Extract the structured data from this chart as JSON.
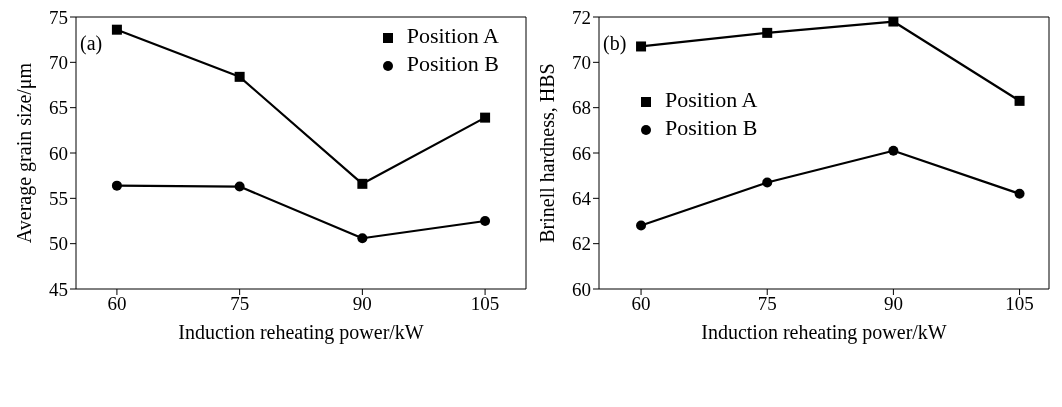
{
  "chart_data": [
    {
      "type": "line",
      "xlabel": "Induction reheating power/kW",
      "ylabel": "Average grain size/μm",
      "annotations": [
        "(a)"
      ],
      "x": [
        60,
        75,
        90,
        105
      ],
      "xlim": [
        55,
        110
      ],
      "xticks": [
        60,
        75,
        90,
        105
      ],
      "ylim": [
        45,
        75
      ],
      "yticks": [
        45,
        50,
        55,
        60,
        65,
        70,
        75
      ],
      "legend": "top right",
      "grid": false,
      "series": [
        {
          "name": "Position A",
          "color": "#000000",
          "marker": "square",
          "values": [
            73.6,
            68.4,
            56.6,
            63.9
          ]
        },
        {
          "name": "Position B",
          "color": "#000000",
          "marker": "circle",
          "values": [
            56.4,
            56.3,
            50.6,
            52.5
          ]
        }
      ]
    },
    {
      "type": "line",
      "xlabel": "Induction reheating power/kW",
      "ylabel": "Brinell hardness, HBS",
      "annotations": [
        "(b)"
      ],
      "x": [
        60,
        75,
        90,
        105
      ],
      "xlim": [
        55,
        108.5
      ],
      "xticks": [
        60,
        75,
        90,
        105
      ],
      "ylim": [
        60,
        72
      ],
      "yticks": [
        60,
        62,
        64,
        66,
        68,
        70,
        72
      ],
      "legend": "top left",
      "grid": false,
      "series": [
        {
          "name": "Position A",
          "color": "#000000",
          "marker": "square",
          "values": [
            70.7,
            71.3,
            71.8,
            68.3
          ]
        },
        {
          "name": "Position B",
          "color": "#000000",
          "marker": "circle",
          "values": [
            62.8,
            64.7,
            66.1,
            64.2
          ]
        }
      ]
    }
  ]
}
